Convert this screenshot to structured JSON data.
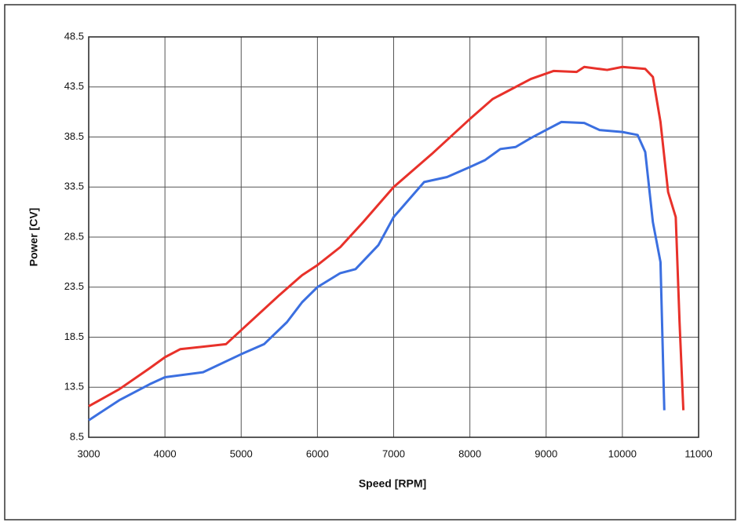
{
  "chart_data": {
    "type": "line",
    "xlabel": "Speed [RPM]",
    "ylabel": "Power [CV]",
    "xlim": [
      3000,
      11000
    ],
    "xticks": [
      3000,
      4000,
      5000,
      6000,
      7000,
      8000,
      9000,
      10000,
      11000
    ],
    "ylim": [
      8.5,
      48.5
    ],
    "yticks": [
      8.5,
      13.5,
      18.5,
      23.5,
      28.5,
      33.5,
      38.5,
      43.5,
      48.5
    ],
    "grid": true,
    "series": [
      {
        "color": "#e8312a",
        "x": [
          3000,
          3400,
          3800,
          4000,
          4200,
          4800,
          5000,
          5500,
          5800,
          6000,
          6300,
          6600,
          7000,
          7500,
          8000,
          8300,
          8800,
          9100,
          9400,
          9500,
          9800,
          10000,
          10300,
          10400,
          10500,
          10600,
          10700,
          10750,
          10800
        ],
        "values": [
          11.6,
          13.3,
          15.4,
          16.5,
          17.3,
          17.8,
          19.2,
          22.7,
          24.7,
          25.7,
          27.5,
          30.0,
          33.5,
          36.8,
          40.3,
          42.3,
          44.3,
          45.1,
          45.0,
          45.5,
          45.2,
          45.5,
          45.3,
          44.5,
          40.0,
          33.0,
          30.5,
          20.0,
          11.2
        ]
      },
      {
        "color": "#3b6fe0",
        "x": [
          3000,
          3400,
          3800,
          4000,
          4500,
          5000,
          5300,
          5600,
          5800,
          6000,
          6300,
          6500,
          6800,
          7000,
          7400,
          7700,
          8000,
          8200,
          8400,
          8600,
          8800,
          9000,
          9200,
          9500,
          9700,
          10000,
          10200,
          10300,
          10400,
          10500,
          10550
        ],
        "values": [
          10.2,
          12.2,
          13.8,
          14.5,
          15.0,
          16.8,
          17.8,
          20.0,
          22.0,
          23.5,
          24.9,
          25.3,
          27.7,
          30.5,
          34.0,
          34.5,
          35.5,
          36.2,
          37.3,
          37.5,
          38.4,
          39.2,
          40.0,
          39.9,
          39.2,
          39.0,
          38.7,
          37.0,
          30.0,
          26.0,
          11.2
        ]
      }
    ]
  }
}
